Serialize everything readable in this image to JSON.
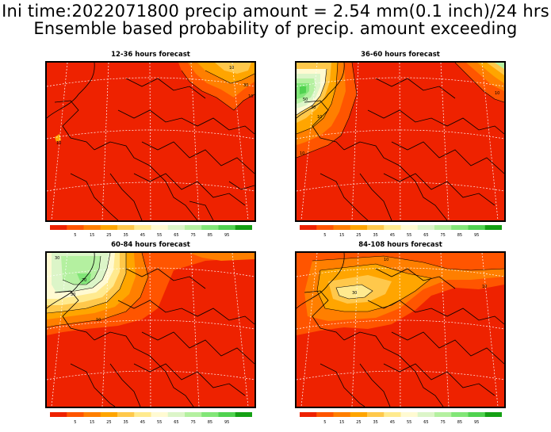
{
  "title": {
    "line1": "Ini time:2022071800 precip amount = 2.54 mm(0.1 inch)/24 hrs",
    "line2": "Ensemble based probability of precip. amount exceeding"
  },
  "colors": {
    "background": "#ffffff",
    "scale": [
      "#ee2200",
      "#ff5500",
      "#ff7f00",
      "#ffa500",
      "#ffc84b",
      "#ffea8f",
      "#fffad2",
      "#dcf5c8",
      "#b4f0a0",
      "#82e678",
      "#50d250",
      "#14a014"
    ]
  },
  "colorbar": {
    "tick_labels": [
      "5",
      "15",
      "25",
      "35",
      "45",
      "55",
      "65",
      "75",
      "85",
      "95"
    ]
  },
  "panels": [
    {
      "title": "12-36 hours forecast",
      "contour_labels": [
        "10",
        "30",
        "10",
        "10"
      ]
    },
    {
      "title": "36-60 hours forecast",
      "contour_labels": [
        "10",
        "30",
        "50",
        "10",
        "10"
      ]
    },
    {
      "title": "60-84 hours forecast",
      "contour_labels": [
        "10",
        "30",
        "50",
        "70"
      ]
    },
    {
      "title": "84-108 hours forecast",
      "contour_labels": [
        "10",
        "30",
        "10"
      ]
    }
  ]
}
